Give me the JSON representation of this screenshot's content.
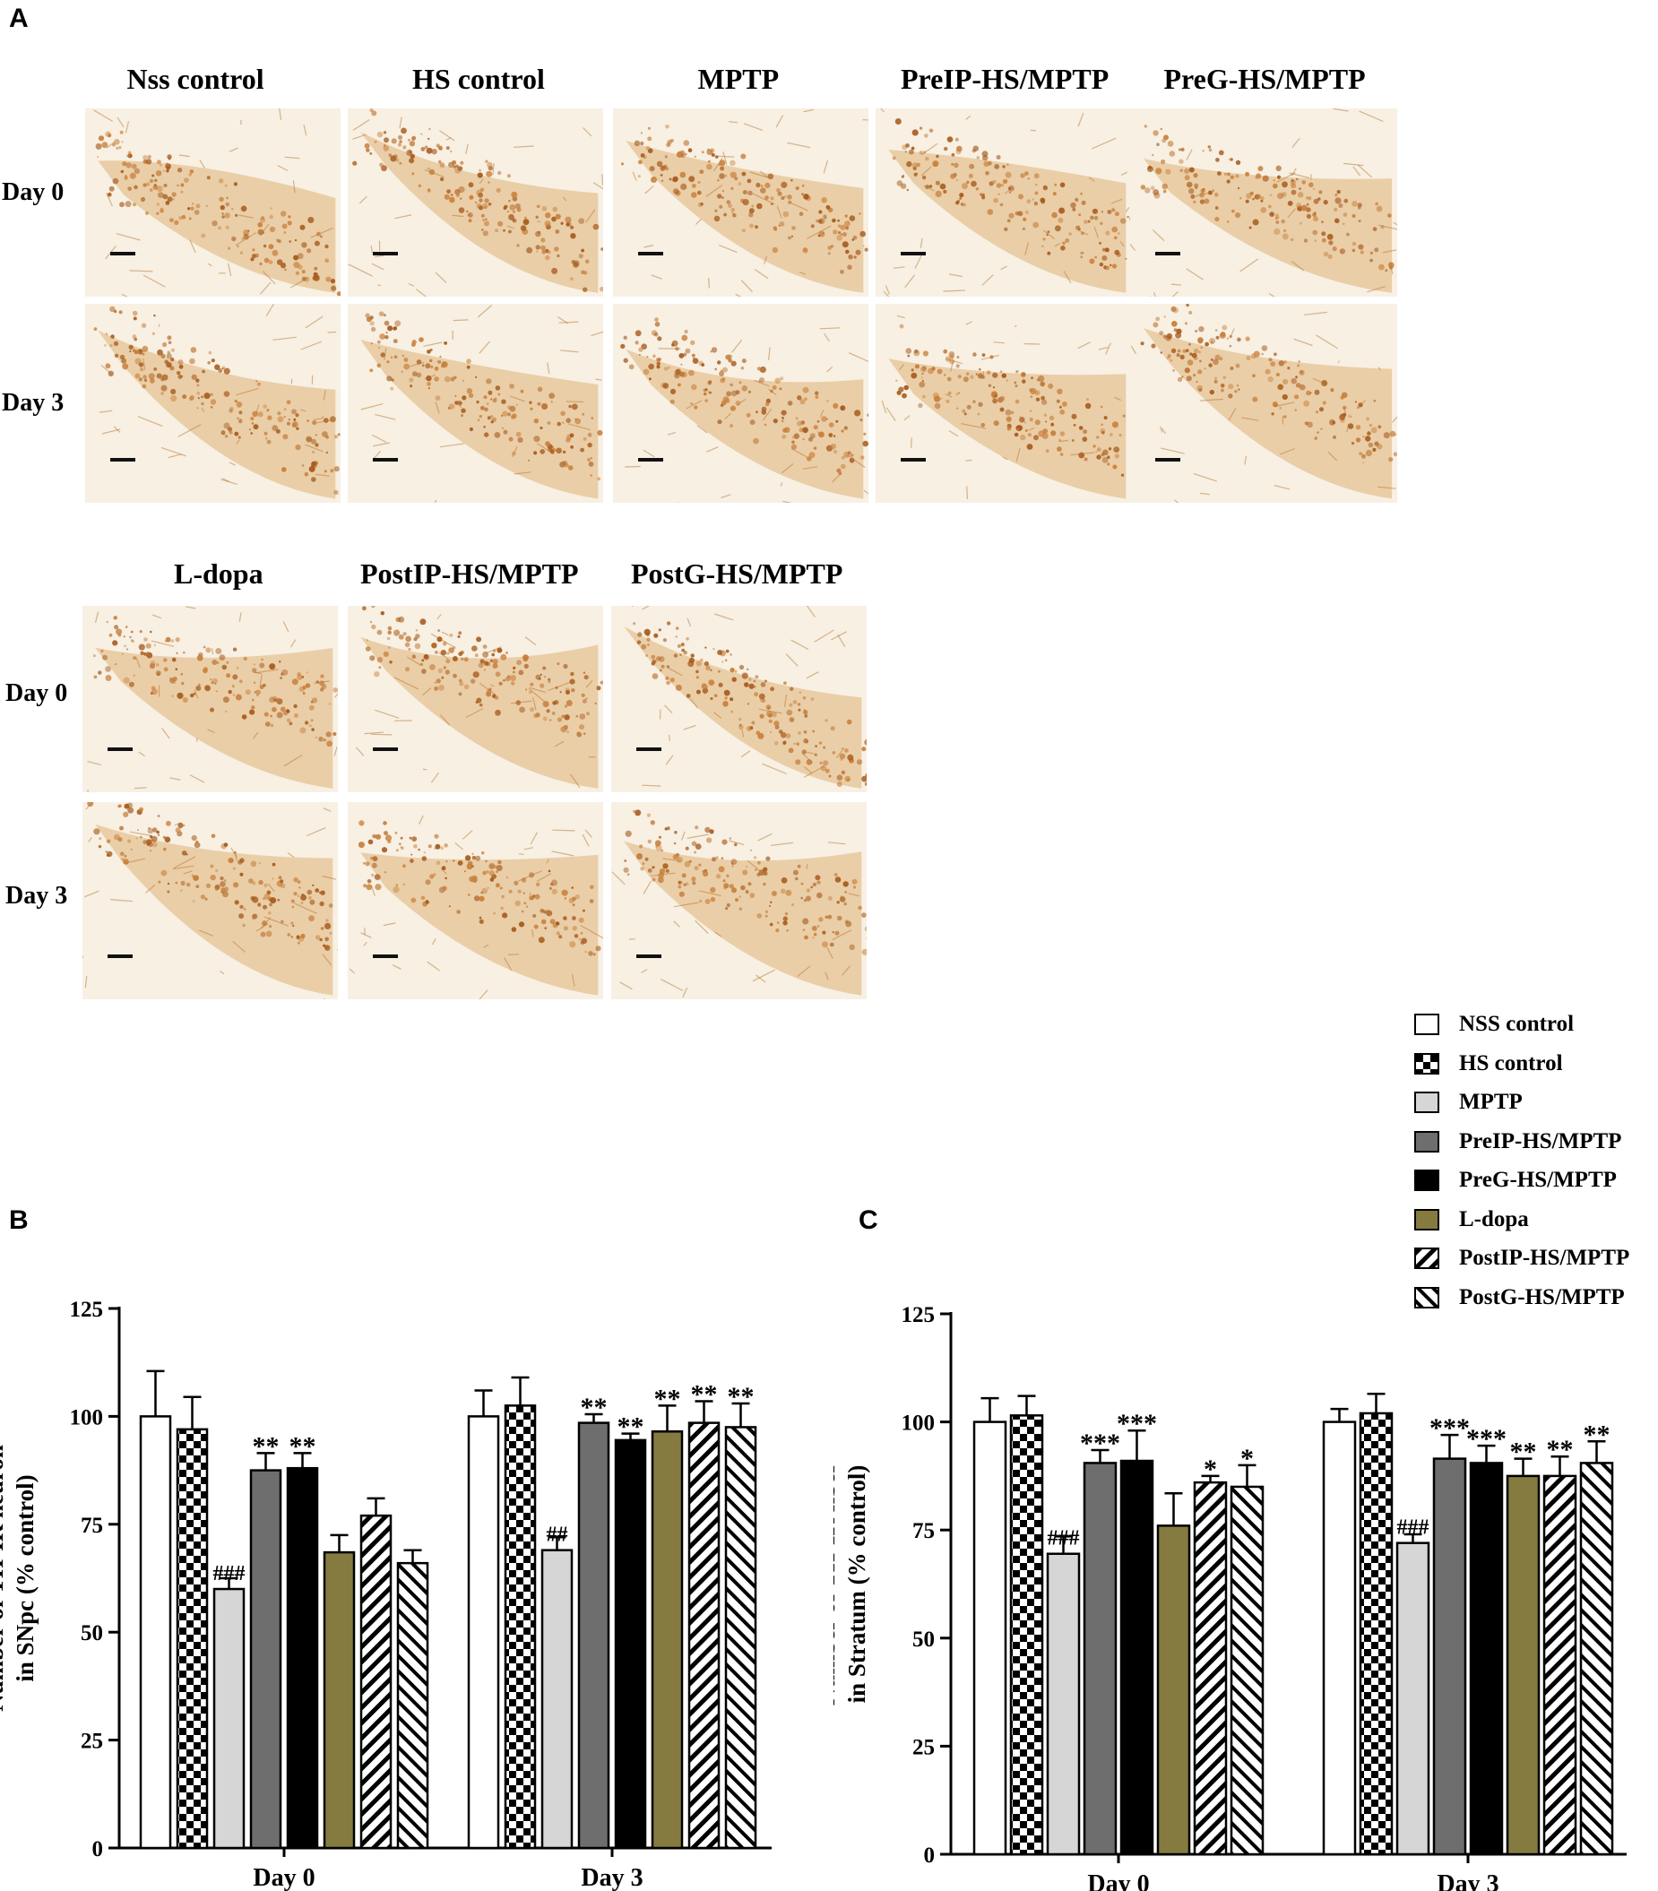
{
  "panel_a": {
    "letter": "A",
    "top_block": {
      "columns": [
        "Nss control",
        "HS control",
        "MPTP",
        "PreIP-HS/MPTP",
        "PreG-HS/MPTP"
      ],
      "rows": [
        "Day 0",
        "Day 3"
      ]
    },
    "bottom_block": {
      "columns": [
        "L-dopa",
        "PostIP-HS/MPTP",
        "PostG-HS/MPTP"
      ],
      "rows": [
        "Day 0",
        "Day 3"
      ]
    }
  },
  "panel_b_letter": "B",
  "panel_c_letter": "C",
  "legend": {
    "items": [
      {
        "label": "NSS control",
        "pattern": "white"
      },
      {
        "label": "HS control",
        "pattern": "checker"
      },
      {
        "label": "MPTP",
        "pattern": "lightgray"
      },
      {
        "label": "PreIP-HS/MPTP",
        "pattern": "darkgray"
      },
      {
        "label": "PreG-HS/MPTP",
        "pattern": "black"
      },
      {
        "label": "L-dopa",
        "pattern": "olive"
      },
      {
        "label": "PostIP-HS/MPTP",
        "pattern": "backslash"
      },
      {
        "label": "PostG-HS/MPTP",
        "pattern": "slash"
      }
    ]
  },
  "colors": {
    "lightgray": "#d6d6d6",
    "darkgray": "#6e6e6e",
    "black": "#000000",
    "olive": "#857b40",
    "stain": "#b8742e"
  },
  "chart_data": [
    {
      "id": "B",
      "type": "bar",
      "ylabel_lines": [
        "Number of TH-IR neuron",
        "in SNpc (% control)"
      ],
      "ylim": [
        0,
        125
      ],
      "yticks": [
        "0",
        "25",
        "50",
        "75",
        "100",
        "125"
      ],
      "categories": [
        "Day 0",
        "Day 3"
      ],
      "series": [
        {
          "name": "NSS control",
          "values": [
            100,
            100
          ],
          "errors": [
            10.5,
            6
          ]
        },
        {
          "name": "HS control",
          "values": [
            97,
            102.5
          ],
          "errors": [
            7.5,
            6.5
          ]
        },
        {
          "name": "MPTP",
          "values": [
            60,
            69
          ],
          "errors": [
            2.5,
            3
          ]
        },
        {
          "name": "PreIP-HS/MPTP",
          "values": [
            87.5,
            98.5
          ],
          "errors": [
            4,
            2
          ]
        },
        {
          "name": "PreG-HS/MPTP",
          "values": [
            88,
            94.5
          ],
          "errors": [
            3.5,
            1.5
          ]
        },
        {
          "name": "L-dopa",
          "values": [
            68.5,
            96.5
          ],
          "errors": [
            4,
            6
          ]
        },
        {
          "name": "PostIP-HS/MPTP",
          "values": [
            77,
            98.5
          ],
          "errors": [
            4,
            5
          ]
        },
        {
          "name": "PostG-HS/MPTP",
          "values": [
            66,
            97.5
          ],
          "errors": [
            3,
            5.5
          ]
        }
      ],
      "annotations": [
        [
          "",
          "",
          "###",
          "**",
          "**",
          "",
          "",
          ""
        ],
        [
          "",
          "",
          "##",
          "**",
          "**",
          "**",
          "**",
          "**"
        ]
      ]
    },
    {
      "id": "C",
      "type": "bar",
      "ylabel_lines": [
        "Number of TH-IR fiber",
        "in Stratum (% control)"
      ],
      "ylim": [
        0,
        125
      ],
      "yticks": [
        "0",
        "25",
        "50",
        "75",
        "100",
        "125"
      ],
      "categories": [
        "Day 0",
        "Day 3"
      ],
      "series": [
        {
          "name": "NSS control",
          "values": [
            100,
            100
          ],
          "errors": [
            5.5,
            3
          ]
        },
        {
          "name": "HS control",
          "values": [
            101.5,
            102
          ],
          "errors": [
            4.5,
            4.5
          ]
        },
        {
          "name": "MPTP",
          "values": [
            69.5,
            72
          ],
          "errors": [
            4,
            2
          ]
        },
        {
          "name": "PreIP-HS/MPTP",
          "values": [
            90.5,
            91.5
          ],
          "errors": [
            3,
            5.5
          ]
        },
        {
          "name": "PreG-HS/MPTP",
          "values": [
            91,
            90.5
          ],
          "errors": [
            7,
            4
          ]
        },
        {
          "name": "L-dopa",
          "values": [
            76,
            87.5
          ],
          "errors": [
            7.5,
            4
          ]
        },
        {
          "name": "PostIP-HS/MPTP",
          "values": [
            86,
            87.5
          ],
          "errors": [
            1.5,
            4.5
          ]
        },
        {
          "name": "PostG-HS/MPTP",
          "values": [
            85,
            90.5
          ],
          "errors": [
            5,
            5
          ]
        }
      ],
      "annotations": [
        [
          "",
          "",
          "###",
          "***",
          "***",
          "",
          "*",
          "*"
        ],
        [
          "",
          "",
          "###",
          "***",
          "***",
          "**",
          "**",
          "**"
        ]
      ]
    }
  ]
}
